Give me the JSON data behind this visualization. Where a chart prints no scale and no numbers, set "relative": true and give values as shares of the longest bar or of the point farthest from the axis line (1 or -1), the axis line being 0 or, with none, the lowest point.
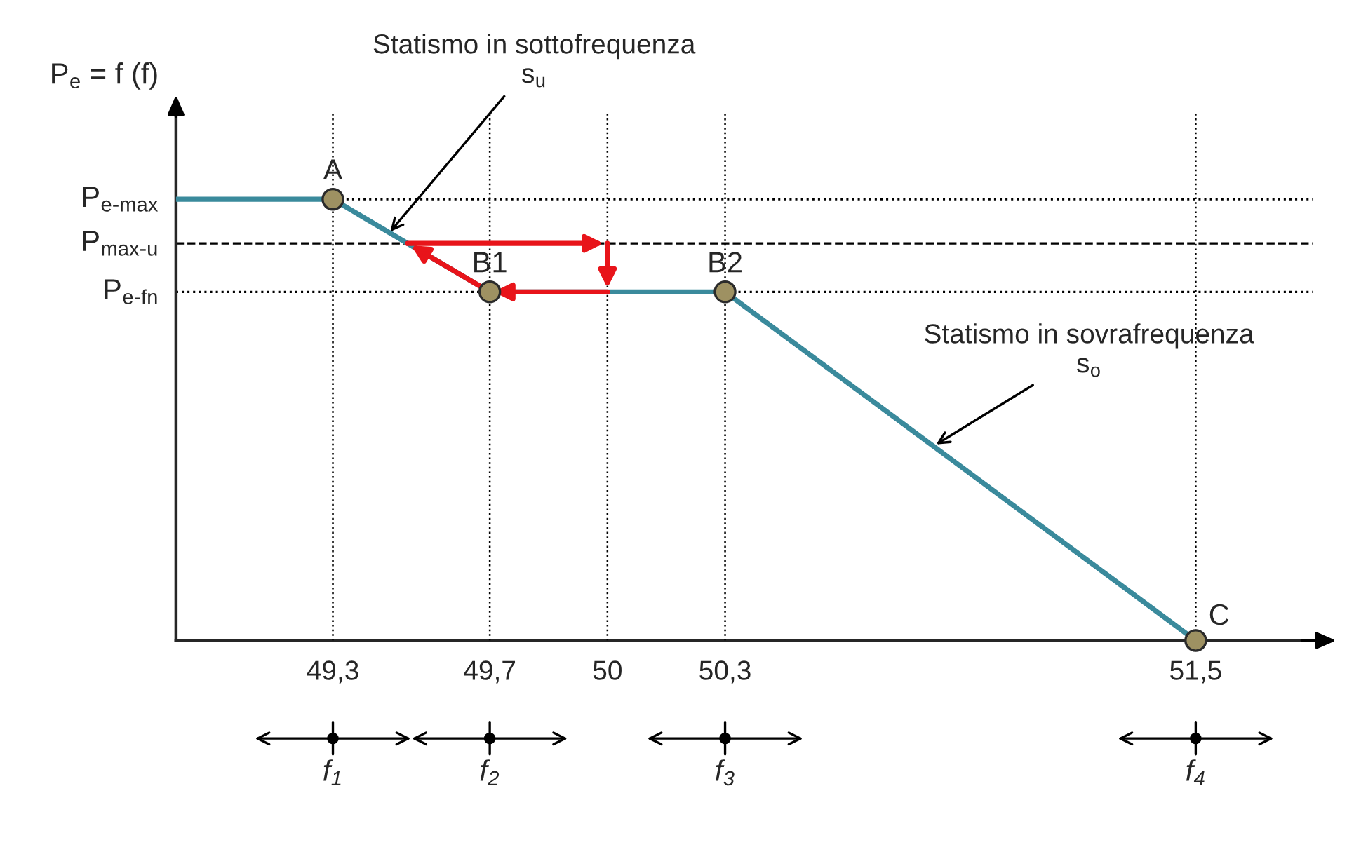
{
  "chart_data": {
    "type": "line",
    "relative": true,
    "ylabel": "P$_{e}$ = f (f)",
    "xlim": [
      48.9,
      51.8
    ],
    "xticks": [
      {
        "value": 49.3,
        "label": "49,3"
      },
      {
        "value": 49.7,
        "label": "49,7"
      },
      50,
      {
        "value": 50.3,
        "label": "50,3"
      },
      {
        "value": 51.5,
        "label": "51,5"
      }
    ],
    "grid": "x",
    "series": [
      {
        "color": "#3a8a9c",
        "x": [
          48.9,
          49.3,
          49.7,
          50.3,
          51.5
        ],
        "values": [
          1,
          1,
          0.79,
          0.79,
          0
        ]
      },
      {
        "type": "scatter",
        "color": "#9e9162",
        "x": [
          49.3,
          49.7,
          50.3,
          51.5
        ],
        "values": [
          1,
          0.79,
          0.79,
          0
        ]
      }
    ],
    "ref_lines": [
      {
        "axis": "y",
        "value": 1,
        "label": "P$_{e-max}$",
        "line_style": "dotted",
        "color": "#000000"
      },
      {
        "axis": "y",
        "value": 0.9,
        "label": "P$_{max-u}$",
        "line_style": "dashed",
        "color": "#000000"
      },
      {
        "axis": "y",
        "value": 0.79,
        "label": "P$_{e-fn}$",
        "line_style": "dotted",
        "color": "#000000"
      }
    ],
    "annotations": [
      {
        "text": "A",
        "x": 49.3,
        "y": 1
      },
      {
        "text": "B1",
        "x": 49.7,
        "y": 0.79
      },
      {
        "text": "B2",
        "x": 50.3,
        "y": 0.79
      },
      {
        "text": "C",
        "x": 51.5,
        "y": 0
      },
      {
        "text": "Statismo in sottofrequenza\ns$_{u}$",
        "x": 49.44,
        "y": 0.92
      },
      {
        "text": "Statismo in sovrafrequenza\ns$_{o}$",
        "x": 50.83,
        "y": 0.44
      },
      "f$_{1}$",
      "f$_{2}$",
      "f$_{3}$",
      "f$_{4}$"
    ]
  }
}
